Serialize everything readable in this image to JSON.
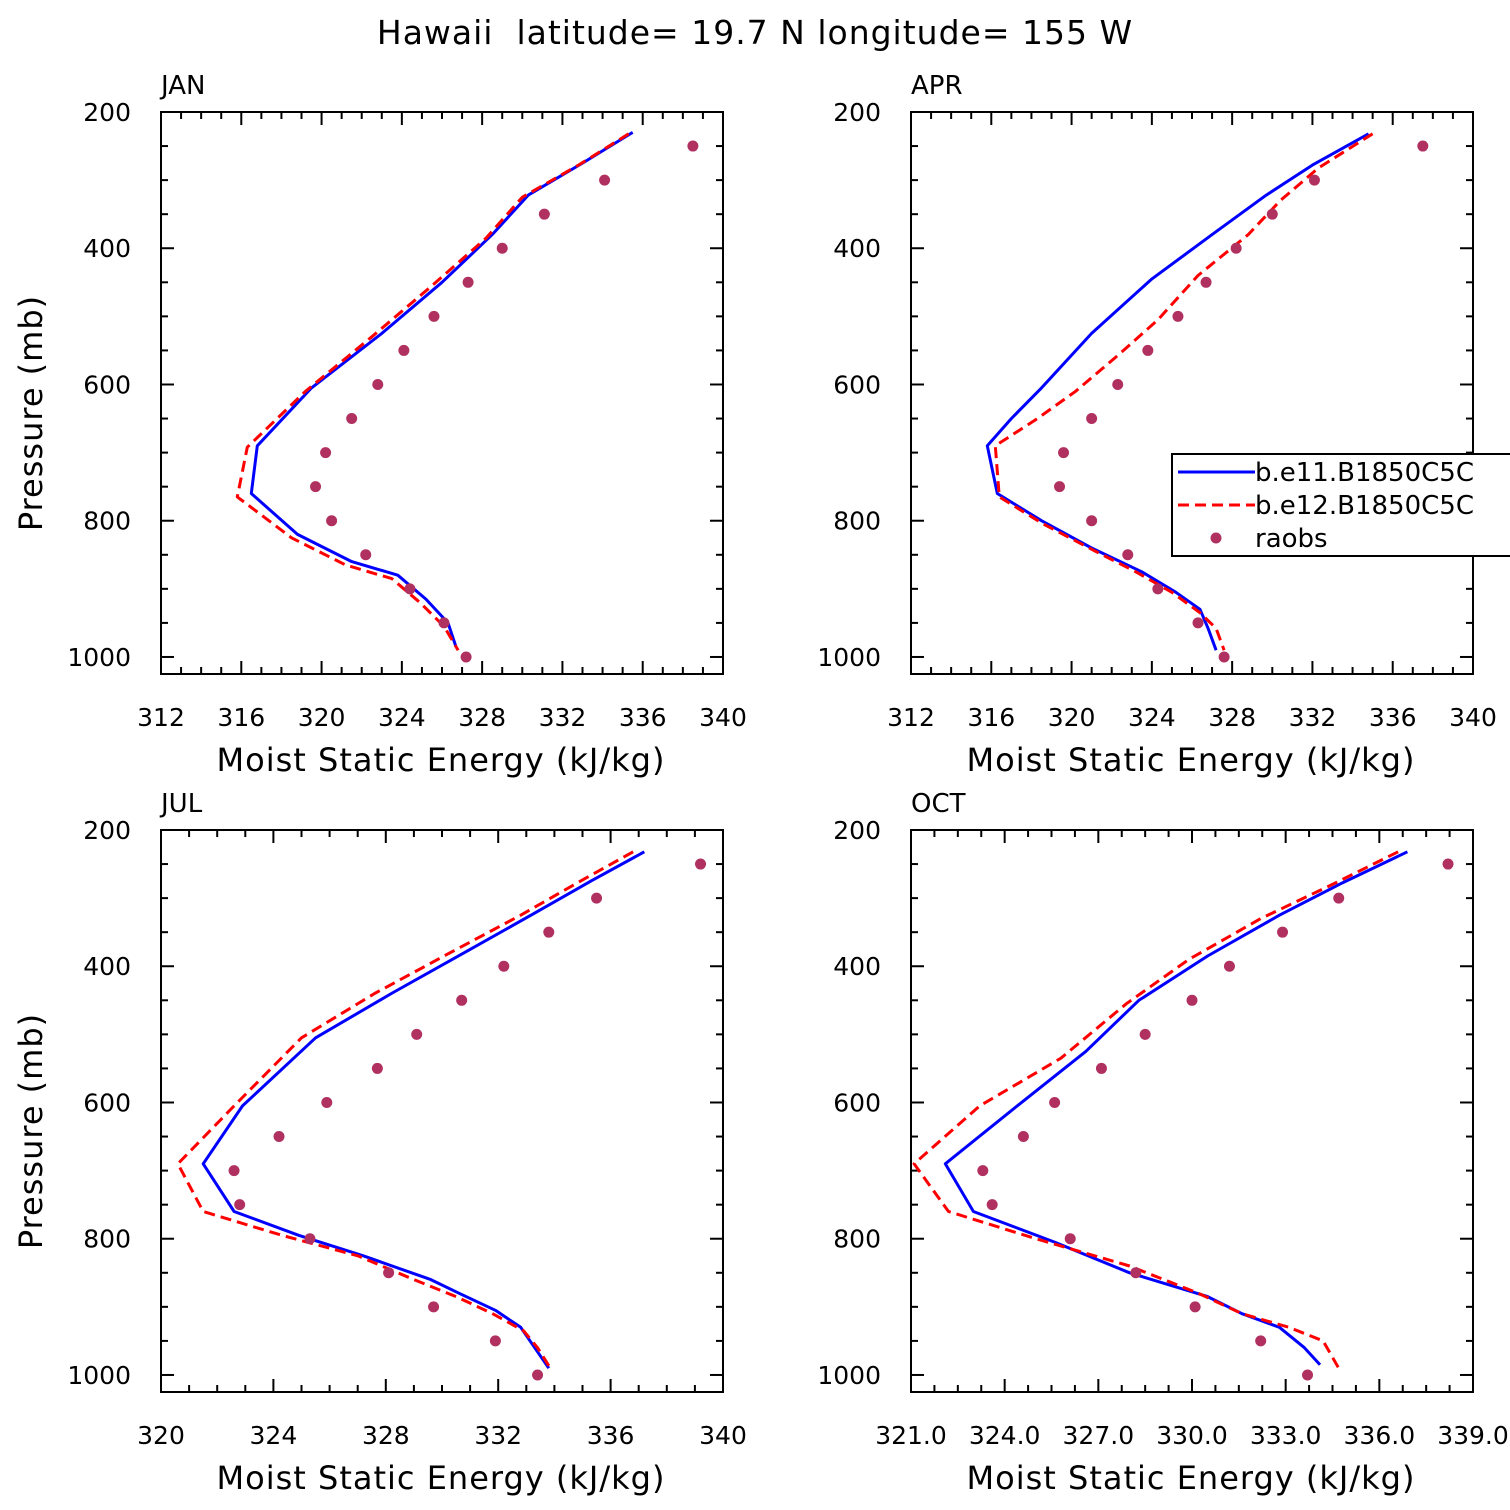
{
  "figure": {
    "title": "Hawaii  latitude= 19.7 N longitude= 155 W"
  },
  "legend": {
    "entries": [
      {
        "label": "b.e11.B1850C5C",
        "style": "solid",
        "color": "#0000ff"
      },
      {
        "label": "b.e12.B1850C5C",
        "style": "dashed",
        "color": "#ff0000"
      },
      {
        "label": "raobs",
        "style": "dot",
        "color": "#b03060"
      }
    ]
  },
  "colors": {
    "series1": "#0000ff",
    "series2": "#ff0000",
    "raobs": "#b03060"
  },
  "chart_data": [
    {
      "type": "line",
      "panel": "JAN",
      "title": "JAN",
      "xlabel": "Moist Static Energy (kJ/kg)",
      "ylabel": "Pressure (mb)",
      "xlim": [
        312,
        340
      ],
      "ylim": [
        1000,
        200
      ],
      "y_inverted": true,
      "xticks": [
        312,
        316,
        320,
        324,
        328,
        332,
        336,
        340
      ],
      "xtick_labels": [
        "312",
        "316",
        "320",
        "324",
        "328",
        "332",
        "336",
        "340"
      ],
      "yticks": [
        200,
        400,
        600,
        800,
        1000
      ],
      "ytick_labels": [
        "200",
        "400",
        "600",
        "800",
        "1000"
      ],
      "series": [
        {
          "name": "b.e11.B1850C5C",
          "style": "solid",
          "points": [
            [
              335.5,
              230
            ],
            [
              333,
              275
            ],
            [
              330.3,
              322
            ],
            [
              328.5,
              380
            ],
            [
              326,
              450
            ],
            [
              323,
              525
            ],
            [
              319.5,
              605
            ],
            [
              316.8,
              690
            ],
            [
              316.5,
              760
            ],
            [
              318.8,
              820
            ],
            [
              321.5,
              860
            ],
            [
              323.8,
              880
            ],
            [
              325.2,
              915
            ],
            [
              326.3,
              950
            ],
            [
              326.7,
              985
            ]
          ]
        },
        {
          "name": "b.e12.B1850C5C",
          "style": "dashed",
          "points": [
            [
              335.3,
              232
            ],
            [
              332.8,
              278
            ],
            [
              330,
              325
            ],
            [
              328.2,
              385
            ],
            [
              325.5,
              455
            ],
            [
              322.5,
              530
            ],
            [
              319.2,
              610
            ],
            [
              316.3,
              692
            ],
            [
              315.8,
              765
            ],
            [
              318.5,
              825
            ],
            [
              321.2,
              865
            ],
            [
              323.5,
              885
            ],
            [
              324.9,
              920
            ],
            [
              326.1,
              955
            ],
            [
              326.8,
              990
            ]
          ]
        },
        {
          "name": "raobs",
          "style": "dot",
          "points": [
            [
              338.5,
              250
            ],
            [
              334.1,
              300
            ],
            [
              331.1,
              350
            ],
            [
              329,
              400
            ],
            [
              327.3,
              450
            ],
            [
              325.6,
              500
            ],
            [
              324.1,
              550
            ],
            [
              322.8,
              600
            ],
            [
              321.5,
              650
            ],
            [
              320.2,
              700
            ],
            [
              319.7,
              750
            ],
            [
              320.5,
              800
            ],
            [
              322.2,
              850
            ],
            [
              324.4,
              900
            ],
            [
              326.1,
              950
            ],
            [
              327.2,
              1000
            ]
          ]
        }
      ]
    },
    {
      "type": "line",
      "panel": "APR",
      "title": "APR",
      "xlabel": "Moist Static Energy (kJ/kg)",
      "ylabel": "",
      "xlim": [
        312,
        340
      ],
      "ylim": [
        1000,
        200
      ],
      "y_inverted": true,
      "xticks": [
        312,
        316,
        320,
        324,
        328,
        332,
        336,
        340
      ],
      "xtick_labels": [
        "312",
        "316",
        "320",
        "324",
        "328",
        "332",
        "336",
        "340"
      ],
      "yticks": [
        200,
        400,
        600,
        800,
        1000
      ],
      "ytick_labels": [
        "200",
        "400",
        "600",
        "800",
        "1000"
      ],
      "series": [
        {
          "name": "b.e11.B1850C5C",
          "style": "solid",
          "points": [
            [
              334.8,
              232
            ],
            [
              332,
              278
            ],
            [
              329.7,
              322
            ],
            [
              327,
              380
            ],
            [
              324,
              445
            ],
            [
              321,
              525
            ],
            [
              318.5,
              605
            ],
            [
              317,
              650
            ],
            [
              315.8,
              690
            ],
            [
              316.3,
              760
            ],
            [
              318.5,
              800
            ],
            [
              321,
              840
            ],
            [
              323.5,
              875
            ],
            [
              325.2,
              905
            ],
            [
              326.4,
              930
            ],
            [
              326.8,
              958
            ],
            [
              327.2,
              990
            ]
          ]
        },
        {
          "name": "b.e12.B1850C5C",
          "style": "dashed",
          "points": [
            [
              335,
              232
            ],
            [
              332.3,
              282
            ],
            [
              330.4,
              330
            ],
            [
              328.8,
              380
            ],
            [
              326.3,
              440
            ],
            [
              324.3,
              505
            ],
            [
              322.4,
              555
            ],
            [
              320.2,
              610
            ],
            [
              318.3,
              650
            ],
            [
              316.2,
              690
            ],
            [
              316.4,
              765
            ],
            [
              318.6,
              805
            ],
            [
              321.2,
              845
            ],
            [
              323.2,
              875
            ],
            [
              325,
              905
            ],
            [
              326.4,
              935
            ],
            [
              327.2,
              958
            ],
            [
              327.6,
              990
            ]
          ]
        },
        {
          "name": "raobs",
          "style": "dot",
          "points": [
            [
              337.5,
              250
            ],
            [
              332.1,
              300
            ],
            [
              330,
              350
            ],
            [
              328.2,
              400
            ],
            [
              326.7,
              450
            ],
            [
              325.3,
              500
            ],
            [
              323.8,
              550
            ],
            [
              322.3,
              600
            ],
            [
              321,
              650
            ],
            [
              319.6,
              700
            ],
            [
              319.4,
              750
            ],
            [
              321,
              800
            ],
            [
              322.8,
              850
            ],
            [
              324.3,
              900
            ],
            [
              326.3,
              950
            ],
            [
              327.6,
              1000
            ]
          ]
        }
      ]
    },
    {
      "type": "line",
      "panel": "JUL",
      "title": "JUL",
      "xlabel": "Moist Static Energy (kJ/kg)",
      "ylabel": "Pressure (mb)",
      "xlim": [
        320,
        340
      ],
      "ylim": [
        1000,
        200
      ],
      "y_inverted": true,
      "xticks": [
        320,
        324,
        328,
        332,
        336,
        340
      ],
      "xtick_labels": [
        "320",
        "324",
        "328",
        "332",
        "336",
        "340"
      ],
      "yticks": [
        200,
        400,
        600,
        800,
        1000
      ],
      "ytick_labels": [
        "200",
        "400",
        "600",
        "800",
        "1000"
      ],
      "series": [
        {
          "name": "b.e11.B1850C5C",
          "style": "solid",
          "points": [
            [
              337.2,
              232
            ],
            [
              335.3,
              275
            ],
            [
              333.3,
              322
            ],
            [
              330.8,
              380
            ],
            [
              328.2,
              440
            ],
            [
              325.5,
              505
            ],
            [
              322.9,
              605
            ],
            [
              321.5,
              690
            ],
            [
              322.6,
              760
            ],
            [
              324.9,
              795
            ],
            [
              327.2,
              825
            ],
            [
              329.6,
              860
            ],
            [
              330.6,
              880
            ],
            [
              331.9,
              905
            ],
            [
              332.8,
              930
            ],
            [
              333.3,
              960
            ],
            [
              333.8,
              990
            ]
          ]
        },
        {
          "name": "b.e12.B1850C5C",
          "style": "dashed",
          "points": [
            [
              336.8,
              232
            ],
            [
              334.8,
              278
            ],
            [
              332.8,
              325
            ],
            [
              330.3,
              380
            ],
            [
              327.6,
              440
            ],
            [
              325,
              505
            ],
            [
              322.6,
              605
            ],
            [
              320.6,
              690
            ],
            [
              321.5,
              760
            ],
            [
              324.3,
              795
            ],
            [
              327,
              825
            ],
            [
              329,
              860
            ],
            [
              330.5,
              885
            ],
            [
              331.8,
              910
            ],
            [
              332.9,
              935
            ],
            [
              333.4,
              960
            ],
            [
              333.9,
              993
            ]
          ]
        },
        {
          "name": "raobs",
          "style": "dot",
          "points": [
            [
              339.2,
              250
            ],
            [
              335.5,
              300
            ],
            [
              333.8,
              350
            ],
            [
              332.2,
              400
            ],
            [
              330.7,
              450
            ],
            [
              329.1,
              500
            ],
            [
              327.7,
              550
            ],
            [
              325.9,
              600
            ],
            [
              324.2,
              650
            ],
            [
              322.6,
              700
            ],
            [
              322.8,
              750
            ],
            [
              325.3,
              800
            ],
            [
              328.1,
              850
            ],
            [
              329.7,
              900
            ],
            [
              331.9,
              950
            ],
            [
              333.4,
              1000
            ]
          ]
        }
      ]
    },
    {
      "type": "line",
      "panel": "OCT",
      "title": "OCT",
      "xlabel": "Moist Static Energy (kJ/kg)",
      "ylabel": "",
      "xlim": [
        321,
        339
      ],
      "ylim": [
        1000,
        200
      ],
      "y_inverted": true,
      "xticks": [
        321,
        324,
        327,
        330,
        333,
        336,
        339
      ],
      "xtick_labels": [
        "321.0",
        "324.0",
        "327.0",
        "330.0",
        "333.0",
        "336.0",
        "339.0"
      ],
      "yticks": [
        200,
        400,
        600,
        800,
        1000
      ],
      "ytick_labels": [
        "200",
        "400",
        "600",
        "800",
        "1000"
      ],
      "series": [
        {
          "name": "b.e11.B1850C5C",
          "style": "solid",
          "points": [
            [
              336.9,
              232
            ],
            [
              334.8,
              278
            ],
            [
              332.8,
              325
            ],
            [
              330.5,
              385
            ],
            [
              328.3,
              450
            ],
            [
              326.6,
              525
            ],
            [
              324.4,
              605
            ],
            [
              322.1,
              690
            ],
            [
              323,
              760
            ],
            [
              325.6,
              805
            ],
            [
              328,
              850
            ],
            [
              330.5,
              885
            ],
            [
              331.6,
              910
            ],
            [
              332.8,
              930
            ],
            [
              333.6,
              960
            ],
            [
              334.1,
              985
            ]
          ]
        },
        {
          "name": "b.e12.B1850C5C",
          "style": "dashed",
          "points": [
            [
              336.6,
              232
            ],
            [
              334.4,
              282
            ],
            [
              332.2,
              330
            ],
            [
              329.9,
              390
            ],
            [
              327.9,
              455
            ],
            [
              325.8,
              535
            ],
            [
              323.2,
              605
            ],
            [
              321.1,
              690
            ],
            [
              322.2,
              760
            ],
            [
              325,
              800
            ],
            [
              328,
              840
            ],
            [
              330.2,
              880
            ],
            [
              331.6,
              910
            ],
            [
              333.1,
              930
            ],
            [
              334.2,
              950
            ],
            [
              334.7,
              990
            ]
          ]
        },
        {
          "name": "raobs",
          "style": "dot",
          "points": [
            [
              338.2,
              250
            ],
            [
              334.7,
              300
            ],
            [
              332.9,
              350
            ],
            [
              331.2,
              400
            ],
            [
              330,
              450
            ],
            [
              328.5,
              500
            ],
            [
              327.1,
              550
            ],
            [
              325.6,
              600
            ],
            [
              324.6,
              650
            ],
            [
              323.3,
              700
            ],
            [
              323.6,
              750
            ],
            [
              326.1,
              800
            ],
            [
              328.2,
              850
            ],
            [
              330.1,
              900
            ],
            [
              332.2,
              950
            ],
            [
              333.7,
              1000
            ]
          ]
        }
      ]
    }
  ]
}
